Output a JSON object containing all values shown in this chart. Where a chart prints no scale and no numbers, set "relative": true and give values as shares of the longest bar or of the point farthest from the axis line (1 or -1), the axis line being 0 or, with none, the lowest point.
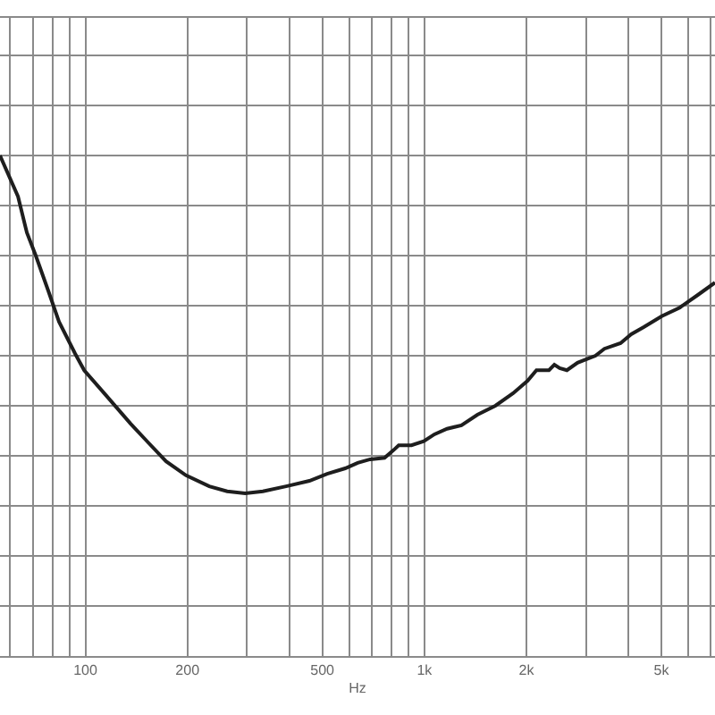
{
  "chart_data": {
    "type": "line",
    "relative": true,
    "log": "x",
    "grid": true,
    "tick_labels": "x",
    "xlabel": "Hz",
    "color": "#1e1e1e",
    "xlim": [
      56,
      7200
    ],
    "xticks": [
      {
        "value": 60,
        "label": null
      },
      {
        "value": 70,
        "label": null
      },
      {
        "value": 80,
        "label": null
      },
      {
        "value": 90,
        "label": null
      },
      100,
      200,
      {
        "value": 300,
        "label": null
      },
      {
        "value": 400,
        "label": null
      },
      500,
      {
        "value": 600,
        "label": null
      },
      {
        "value": 700,
        "label": null
      },
      {
        "value": 800,
        "label": null
      },
      {
        "value": 900,
        "label": null
      },
      {
        "value": 1000,
        "label": "1k"
      },
      {
        "value": 2000,
        "label": "2k"
      },
      {
        "value": 3000,
        "label": null
      },
      {
        "value": 4000,
        "label": null
      },
      {
        "value": 5000,
        "label": "5k"
      },
      {
        "value": 6000,
        "label": null
      },
      {
        "value": 7000,
        "label": null
      }
    ],
    "x": [
      56,
      63.3,
      67.2,
      71.4,
      77.8,
      83.6,
      93.3,
      99.2,
      116,
      136,
      154,
      173,
      198,
      232,
      262,
      296,
      334,
      391,
      458,
      517,
      584,
      636,
      692,
      763,
      810,
      840,
      916,
      996,
      1071,
      1167,
      1286,
      1434,
      1620,
      1828,
      2016,
      2141,
      2331,
      2418,
      2507,
      2633,
      2831,
      3009,
      3196,
      3397,
      3790,
      4076,
      4437,
      5016,
      5664,
      6394,
      7200
    ],
    "values": [
      1.0,
      0.918,
      0.846,
      0.8,
      0.729,
      0.668,
      0.604,
      0.571,
      0.518,
      0.464,
      0.425,
      0.389,
      0.361,
      0.339,
      0.329,
      0.325,
      0.329,
      0.339,
      0.35,
      0.364,
      0.375,
      0.386,
      0.393,
      0.396,
      0.411,
      0.421,
      0.421,
      0.429,
      0.443,
      0.454,
      0.461,
      0.482,
      0.5,
      0.525,
      0.55,
      0.571,
      0.571,
      0.582,
      0.575,
      0.571,
      0.586,
      0.593,
      0.6,
      0.614,
      0.625,
      0.643,
      0.657,
      0.679,
      0.696,
      0.721,
      0.746
    ]
  }
}
